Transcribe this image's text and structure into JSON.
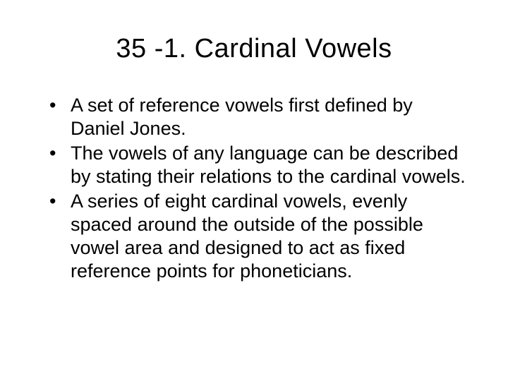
{
  "slide": {
    "title": "35 -1. Cardinal Vowels",
    "bullets": [
      "A set of reference vowels first defined by Daniel Jones.",
      "The vowels of any language can be described by stating their relations to the cardinal vowels.",
      "A series of eight cardinal vowels, evenly spaced around the outside of the possible vowel area and designed to act as fixed reference points for phoneticians."
    ],
    "styling": {
      "background_color": "#ffffff",
      "text_color": "#000000",
      "title_fontsize": 38,
      "body_fontsize": 27,
      "font_family": "Arial"
    }
  }
}
